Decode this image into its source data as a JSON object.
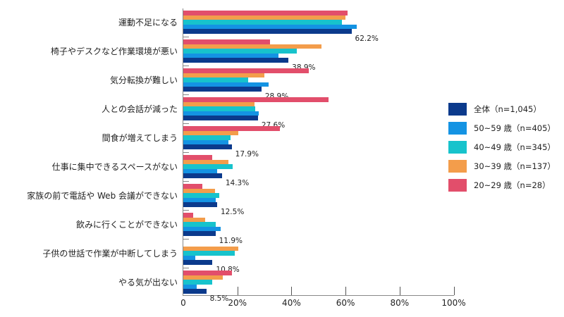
{
  "chart_data": {
    "type": "bar",
    "orientation": "horizontal",
    "title": "",
    "xlabel": "",
    "ylabel": "",
    "xlim": [
      0,
      100
    ],
    "x_ticks": [
      "0",
      "20%",
      "40%",
      "60%",
      "80%",
      "100%"
    ],
    "grid": false,
    "legend_position": "right",
    "categories": [
      "運動不足になる",
      "椅子やデスクなど作業環境が悪い",
      "気分転換が難しい",
      "人との会話が減った",
      "間食が増えてしまう",
      "仕事に集中できるスペースがない",
      "家族の前で電話や Web 会議ができない",
      "飲みに行くことができない",
      "子供の世話で作業が中断してしまう",
      "やる気が出ない"
    ],
    "series": [
      {
        "name": "20~29 歳（n=28）",
        "color": "#E24E6B",
        "values": [
          60.7,
          32.1,
          46.4,
          53.6,
          35.7,
          10.7,
          7.1,
          3.6,
          0.0,
          17.9
        ]
      },
      {
        "name": "30~39 歳（n=137）",
        "color": "#F39D4B",
        "values": [
          59.9,
          51.1,
          29.9,
          26.3,
          20.4,
          16.8,
          11.7,
          8.0,
          20.4,
          14.6
        ]
      },
      {
        "name": "40~49 歳（n=345）",
        "color": "#17C3CC",
        "values": [
          58.8,
          42.0,
          24.1,
          26.7,
          17.4,
          18.3,
          13.3,
          11.9,
          19.1,
          10.7
        ]
      },
      {
        "name": "50~59 歳（n=405）",
        "color": "#1493E3",
        "values": [
          64.2,
          35.1,
          31.6,
          27.9,
          16.8,
          12.6,
          12.1,
          13.8,
          4.4,
          4.9
        ]
      },
      {
        "name": "全体（n=1,045）",
        "color": "#0B3A8C",
        "values": [
          62.2,
          38.9,
          28.9,
          27.6,
          17.9,
          14.3,
          12.5,
          11.9,
          10.8,
          8.5
        ]
      }
    ],
    "data_labels": [
      "62.2%",
      "38.9%",
      "28.9%",
      "27.6%",
      "17.9%",
      "14.3%",
      "12.5%",
      "11.9%",
      "10.8%",
      "8.5%"
    ],
    "data_labels_series": "全体（n=1,045）"
  },
  "legend": {
    "items": [
      {
        "label": "全体（n=1,045）",
        "color": "#0B3A8C"
      },
      {
        "label": "50~59 歳（n=405）",
        "color": "#1493E3"
      },
      {
        "label": "40~49 歳（n=345）",
        "color": "#17C3CC"
      },
      {
        "label": "30~39 歳（n=137）",
        "color": "#F39D4B"
      },
      {
        "label": "20~29 歳（n=28）",
        "color": "#E24E6B"
      }
    ]
  }
}
